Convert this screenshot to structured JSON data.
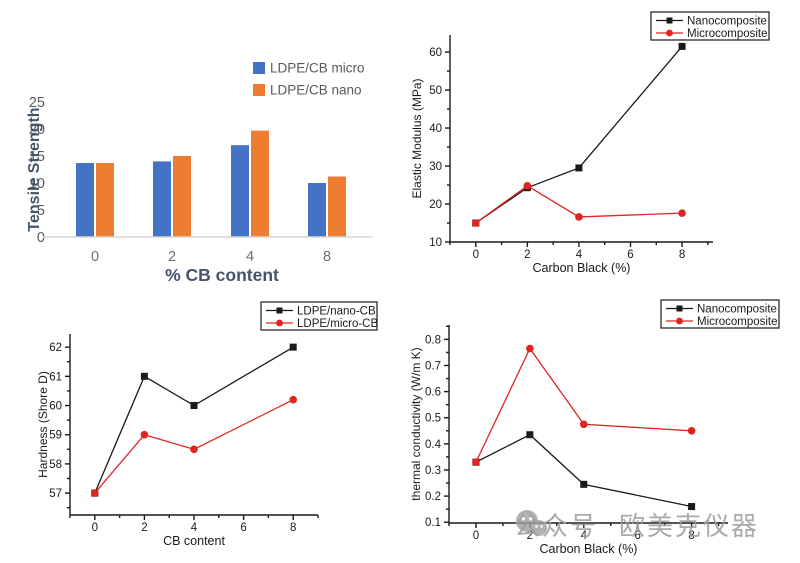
{
  "watermark": {
    "icon": "wechat-icon",
    "prefix": "公众号",
    "brand": "欧美克仪器"
  },
  "palette": {
    "bar_blue": "#4472c4",
    "bar_orange": "#ed7d31",
    "line_black": "#1a1a1a",
    "line_red": "#e02420",
    "bar_axis_gray": "#d6d6d6",
    "bar_tick_text": "#595959",
    "bar_title_text": "#44546a",
    "watermark_gray": "#9e9e9e"
  },
  "chart_data": [
    {
      "type": "bar",
      "title": "",
      "categories": [
        "0",
        "2",
        "4",
        "8"
      ],
      "series": [
        {
          "name": "LDPE/CB micro",
          "color": "#4472c4",
          "values": [
            13.7,
            14.0,
            17.0,
            10.0
          ]
        },
        {
          "name": "LDPE/CB nano",
          "color": "#ed7d31",
          "values": [
            13.7,
            15.0,
            19.7,
            11.2
          ]
        }
      ],
      "xlabel": "% CB content",
      "ylabel": "Tensile Strength",
      "ylim": [
        0,
        25
      ],
      "yticks": [
        0,
        5,
        10,
        15,
        20,
        25
      ],
      "grid": false,
      "legend_position": "top-right"
    },
    {
      "type": "line",
      "title": "",
      "x": [
        0,
        2,
        4,
        8
      ],
      "series": [
        {
          "name": "Nanocomposite",
          "color": "#1a1a1a",
          "marker": "square",
          "values": [
            15.0,
            24.3,
            29.5,
            61.5
          ]
        },
        {
          "name": "Microcomposite",
          "color": "#e02420",
          "marker": "circle",
          "values": [
            15.0,
            24.8,
            16.6,
            17.6
          ]
        }
      ],
      "xlabel": "Carbon Black (%)",
      "ylabel": "Elastic Modulus (MPa)",
      "xlim": [
        -1,
        9.2
      ],
      "xticks": [
        0,
        2,
        4,
        6,
        8
      ],
      "ylim": [
        10,
        64.5
      ],
      "yticks": [
        10,
        20,
        30,
        40,
        50,
        60
      ],
      "ytick_decimals": 0,
      "grid": false,
      "frame": "left-bottom",
      "ticks": "outside",
      "legend_position": "top-right"
    },
    {
      "type": "line",
      "title": "",
      "x": [
        0,
        2,
        4,
        8
      ],
      "series": [
        {
          "name": "LDPE/nano-CB",
          "color": "#1a1a1a",
          "marker": "square",
          "values": [
            57.0,
            61.0,
            60.0,
            62.0
          ]
        },
        {
          "name": "LDPE/micro-CB",
          "color": "#e02420",
          "marker": "circle",
          "values": [
            57.0,
            59.0,
            58.5,
            60.2
          ]
        }
      ],
      "xlabel": "CB content",
      "ylabel": "Hardness (Shore D)",
      "xlim": [
        -1,
        9
      ],
      "xticks": [
        0,
        2,
        4,
        6,
        8
      ],
      "ylim": [
        56.25,
        62.45
      ],
      "yticks": [
        57,
        58,
        59,
        60,
        61,
        62
      ],
      "ytick_decimals": 0,
      "grid": false,
      "frame": "left-bottom",
      "ticks": "outside",
      "legend_position": "top-right"
    },
    {
      "type": "line",
      "title": "",
      "x": [
        0,
        2,
        4,
        8
      ],
      "series": [
        {
          "name": "Nanocomposite",
          "color": "#1a1a1a",
          "marker": "square",
          "values": [
            0.33,
            0.435,
            0.245,
            0.16
          ]
        },
        {
          "name": "Microcomposite",
          "color": "#e02420",
          "marker": "circle",
          "values": [
            0.33,
            0.765,
            0.475,
            0.45
          ]
        }
      ],
      "xlabel": "Carbon Black (%)",
      "ylabel": "thermal conductivity (W/m K)",
      "xlim": [
        -1,
        9.35
      ],
      "xticks": [
        0,
        2,
        4,
        6,
        8
      ],
      "ylim": [
        0.097,
        0.855
      ],
      "yticks": [
        0.1,
        0.2,
        0.3,
        0.4,
        0.5,
        0.6,
        0.7,
        0.8
      ],
      "ytick_decimals": 1,
      "grid": false,
      "frame": "left-bottom",
      "ticks": "outside",
      "legend_position": "top-right"
    }
  ]
}
